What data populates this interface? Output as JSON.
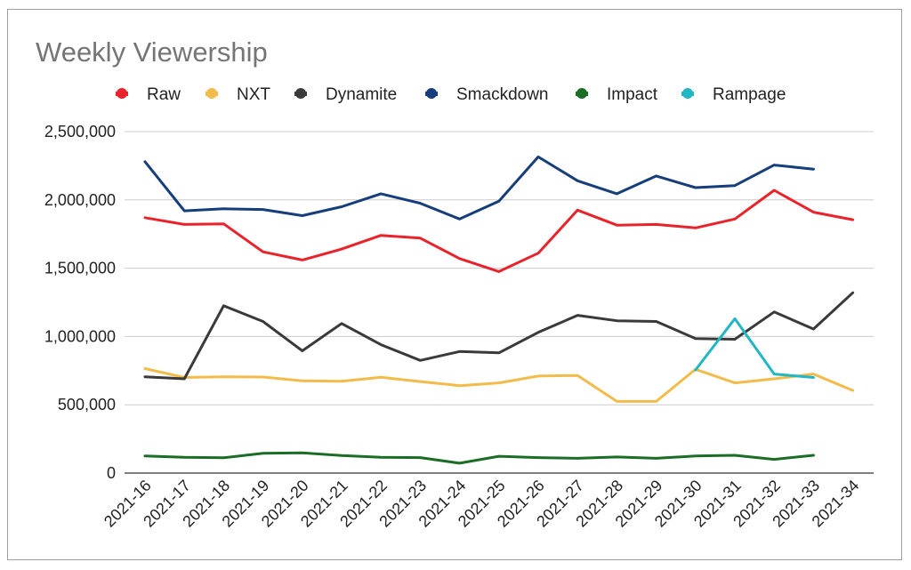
{
  "chart_data": {
    "type": "line",
    "title": "Weekly Viewership",
    "xlabel": "",
    "ylabel": "",
    "ylim": [
      0,
      2500000
    ],
    "yticks": [
      0,
      500000,
      1000000,
      1500000,
      2000000,
      2500000
    ],
    "ytick_labels": [
      "0",
      "500,000",
      "1,000,000",
      "1,500,000",
      "2,000,000",
      "2,500,000"
    ],
    "grid": true,
    "legend_position": "top",
    "categories": [
      "2021-16",
      "2021-17",
      "2021-18",
      "2021-19",
      "2021-20",
      "2021-21",
      "2021-22",
      "2021-23",
      "2021-24",
      "2021-25",
      "2021-26",
      "2021-27",
      "2021-28",
      "2021-29",
      "2021-30",
      "2021-31",
      "2021-32",
      "2021-33",
      "2021-34"
    ],
    "series": [
      {
        "name": "Raw",
        "color": "#e8232b",
        "values": [
          1870000,
          1820000,
          1825000,
          1620000,
          1560000,
          1640000,
          1740000,
          1720000,
          1570000,
          1475000,
          1610000,
          1925000,
          1815000,
          1820000,
          1795000,
          1860000,
          2070000,
          1910000,
          1855000
        ]
      },
      {
        "name": "NXT",
        "color": "#f3bb4a",
        "values": [
          765000,
          700000,
          705000,
          703000,
          675000,
          672000,
          702000,
          670000,
          640000,
          660000,
          710000,
          715000,
          525000,
          525000,
          760000,
          660000,
          690000,
          725000,
          605000
        ]
      },
      {
        "name": "Dynamite",
        "color": "#3a3a3a",
        "values": [
          705000,
          690000,
          1225000,
          1110000,
          895000,
          1095000,
          940000,
          825000,
          890000,
          880000,
          1030000,
          1155000,
          1115000,
          1110000,
          985000,
          980000,
          1180000,
          1055000,
          1320000
        ]
      },
      {
        "name": "Smackdown",
        "color": "#163e7a",
        "values": [
          2280000,
          1920000,
          1935000,
          1930000,
          1885000,
          1950000,
          2045000,
          1975000,
          1860000,
          1990000,
          2315000,
          2140000,
          2045000,
          2175000,
          2090000,
          2105000,
          2255000,
          2225000,
          null
        ]
      },
      {
        "name": "Impact",
        "color": "#1b6d25",
        "values": [
          125000,
          115000,
          112000,
          145000,
          148000,
          128000,
          115000,
          113000,
          72000,
          123000,
          113000,
          108000,
          118000,
          108000,
          125000,
          130000,
          100000,
          130000,
          null
        ]
      },
      {
        "name": "Rampage",
        "color": "#22b7c3",
        "values": [
          null,
          null,
          null,
          null,
          null,
          null,
          null,
          null,
          null,
          null,
          null,
          null,
          null,
          null,
          755000,
          1130000,
          725000,
          700000,
          null
        ]
      }
    ]
  }
}
